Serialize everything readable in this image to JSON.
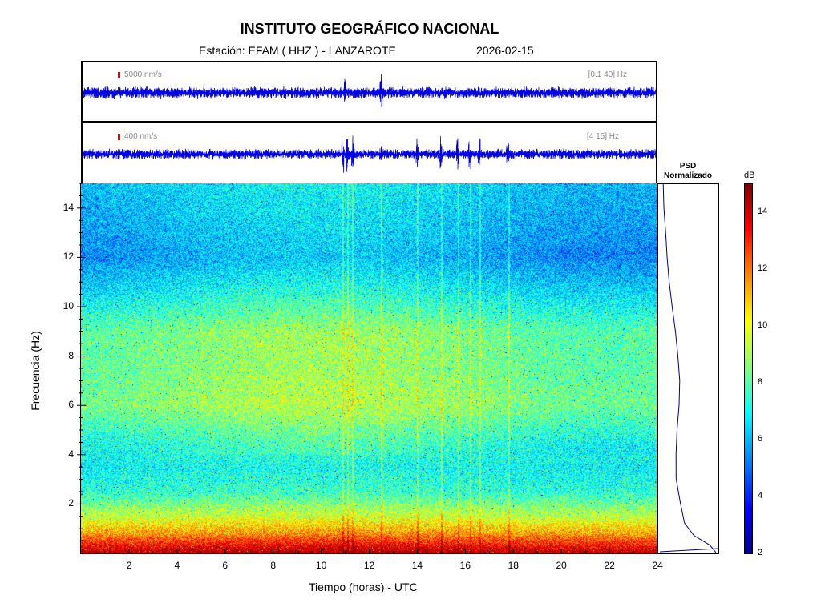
{
  "header": {
    "title": "INSTITUTO GEOGRÁFICO NACIONAL",
    "station": "Estación:  EFAM ( HHZ ) - LANZAROTE",
    "date": "2026-02-15"
  },
  "traces": [
    {
      "scale_label": "5000 nm/s",
      "band_label": "[0.1 40] Hz",
      "color": "#0000e6"
    },
    {
      "scale_label": "400 nm/s",
      "band_label": "[4 15] Hz",
      "color": "#0000e6"
    }
  ],
  "psd": {
    "title_line1": "PSD",
    "title_line2": "Normalizado",
    "line_color": "#00008b"
  },
  "colorbar": {
    "label": "dB",
    "ticks": [
      "14",
      "12",
      "10",
      "8",
      "6",
      "4",
      "2"
    ],
    "range": [
      2,
      15
    ]
  },
  "chart_data": {
    "type": "heatmap",
    "title": "INSTITUTO GEOGRÁFICO NACIONAL",
    "xlabel": "Tiempo (horas) - UTC",
    "ylabel": "Frecuencia  (Hz)",
    "xlim": [
      0,
      24
    ],
    "ylim": [
      0,
      15
    ],
    "x_ticks": [
      "2",
      "4",
      "6",
      "8",
      "10",
      "12",
      "14",
      "16",
      "18",
      "20",
      "22",
      "24"
    ],
    "y_ticks": [
      "2",
      "4",
      "6",
      "8",
      "10",
      "12",
      "14"
    ],
    "colorbar_label": "dB",
    "colorbar_range": [
      2,
      15
    ],
    "mean_level_db_by_frequency": [
      {
        "hz": 0.0,
        "db": 14.5
      },
      {
        "hz": 0.3,
        "db": 13.5
      },
      {
        "hz": 0.8,
        "db": 11.5
      },
      {
        "hz": 1.5,
        "db": 9.5
      },
      {
        "hz": 2.5,
        "db": 7.5
      },
      {
        "hz": 3.5,
        "db": 7.0
      },
      {
        "hz": 4.5,
        "db": 7.5
      },
      {
        "hz": 6.0,
        "db": 8.8
      },
      {
        "hz": 7.5,
        "db": 8.5
      },
      {
        "hz": 9.0,
        "db": 8.5
      },
      {
        "hz": 10.5,
        "db": 7.0
      },
      {
        "hz": 12.0,
        "db": 5.8
      },
      {
        "hz": 13.5,
        "db": 6.2
      },
      {
        "hz": 15.0,
        "db": 6.5
      }
    ],
    "psd_normalized_by_frequency": [
      {
        "hz": 0.0,
        "value": 1.0
      },
      {
        "hz": 0.3,
        "value": 0.9
      },
      {
        "hz": 0.7,
        "value": 0.6
      },
      {
        "hz": 1.2,
        "value": 0.45
      },
      {
        "hz": 2.0,
        "value": 0.36
      },
      {
        "hz": 3.0,
        "value": 0.3
      },
      {
        "hz": 4.0,
        "value": 0.28
      },
      {
        "hz": 5.0,
        "value": 0.3
      },
      {
        "hz": 6.0,
        "value": 0.34
      },
      {
        "hz": 7.0,
        "value": 0.35
      },
      {
        "hz": 8.0,
        "value": 0.32
      },
      {
        "hz": 9.0,
        "value": 0.28
      },
      {
        "hz": 10.0,
        "value": 0.22
      },
      {
        "hz": 11.0,
        "value": 0.16
      },
      {
        "hz": 12.0,
        "value": 0.12
      },
      {
        "hz": 13.0,
        "value": 0.1
      },
      {
        "hz": 14.0,
        "value": 0.08
      },
      {
        "hz": 15.0,
        "value": 0.06
      }
    ],
    "transient_events_hours": [
      10.9,
      11.1,
      11.3,
      12.5,
      14.0,
      15.0,
      15.7,
      16.2,
      16.6,
      17.8
    ]
  }
}
